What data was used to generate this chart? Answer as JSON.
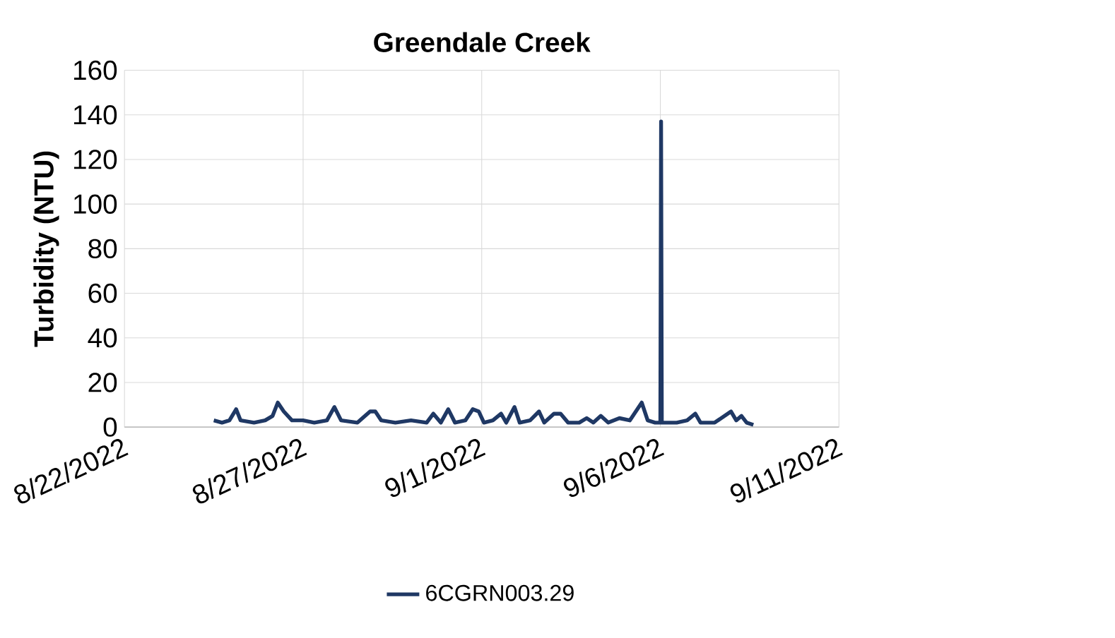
{
  "chart_data": {
    "type": "line",
    "title": "Greendale Creek",
    "ylabel": "Turbidity (NTU)",
    "x": [
      "2022-08-24T12:00",
      "2022-08-24T17:30",
      "2022-08-24T22:30",
      "2022-08-25T03:00",
      "2022-08-25T06:00",
      "2022-08-25T15:00",
      "2022-08-25T22:30",
      "2022-08-26T03:30",
      "2022-08-26T07:00",
      "2022-08-26T11:00",
      "2022-08-26T16:30",
      "2022-08-27T00:00",
      "2022-08-27T07:30",
      "2022-08-27T16:00",
      "2022-08-27T21:00",
      "2022-08-28T01:30",
      "2022-08-28T12:30",
      "2022-08-28T21:00",
      "2022-08-29T00:30",
      "2022-08-29T04:30",
      "2022-08-29T14:00",
      "2022-08-30T00:30",
      "2022-08-30T11:00",
      "2022-08-30T15:30",
      "2022-08-30T20:30",
      "2022-08-31T01:30",
      "2022-08-31T06:00",
      "2022-08-31T13:00",
      "2022-08-31T18:00",
      "2022-08-31T22:00",
      "2022-09-01T01:30",
      "2022-09-01T07:30",
      "2022-09-01T13:00",
      "2022-09-01T16:30",
      "2022-09-01T22:00",
      "2022-09-02T01:30",
      "2022-09-02T08:30",
      "2022-09-02T14:30",
      "2022-09-02T18:00",
      "2022-09-03T00:30",
      "2022-09-03T05:00",
      "2022-09-03T10:00",
      "2022-09-03T17:30",
      "2022-09-03T22:30",
      "2022-09-04T03:00",
      "2022-09-04T08:00",
      "2022-09-04T13:00",
      "2022-09-04T20:30",
      "2022-09-05T03:30",
      "2022-09-05T11:30",
      "2022-09-05T15:30",
      "2022-09-05T20:30",
      "2022-09-06T00:00",
      "2022-09-06T00:30",
      "2022-09-06T01:00",
      "2022-09-06T11:00",
      "2022-09-06T18:00",
      "2022-09-06T23:30",
      "2022-09-07T03:00",
      "2022-09-07T12:30",
      "2022-09-07T23:30",
      "2022-09-08T03:00",
      "2022-09-08T06:30",
      "2022-09-08T10:00",
      "2022-09-08T14:30"
    ],
    "series": [
      {
        "name": "6CGRN003.29",
        "color": "#1f3864",
        "values": [
          3,
          2,
          3,
          8,
          3,
          2,
          3,
          5,
          11,
          7,
          3,
          3,
          2,
          3,
          9,
          3,
          2,
          7,
          7,
          3,
          2,
          3,
          2,
          6,
          2,
          8,
          2,
          3,
          8,
          7,
          2,
          3,
          6,
          2,
          9,
          2,
          3,
          7,
          2,
          6,
          6,
          2,
          2,
          4,
          2,
          5,
          2,
          4,
          3,
          11,
          3,
          2,
          2,
          137,
          2,
          2,
          3,
          6,
          2,
          2,
          7,
          3,
          5,
          2,
          1
        ]
      }
    ],
    "xlim": [
      "2022-08-22",
      "2022-09-11"
    ],
    "xticks": [
      {
        "value": "2022-08-22",
        "label": "8/22/2022"
      },
      {
        "value": "2022-08-27",
        "label": "8/27/2022"
      },
      {
        "value": "2022-09-01",
        "label": "9/1/2022"
      },
      {
        "value": "2022-09-06",
        "label": "9/6/2022"
      },
      {
        "value": "2022-09-11",
        "label": "9/11/2022"
      }
    ],
    "ylim": [
      0,
      160
    ],
    "yticks": [
      0,
      20,
      40,
      60,
      80,
      100,
      120,
      140,
      160
    ],
    "grid": true,
    "legend": "bottom",
    "marker": "none",
    "line_style": "solid"
  }
}
